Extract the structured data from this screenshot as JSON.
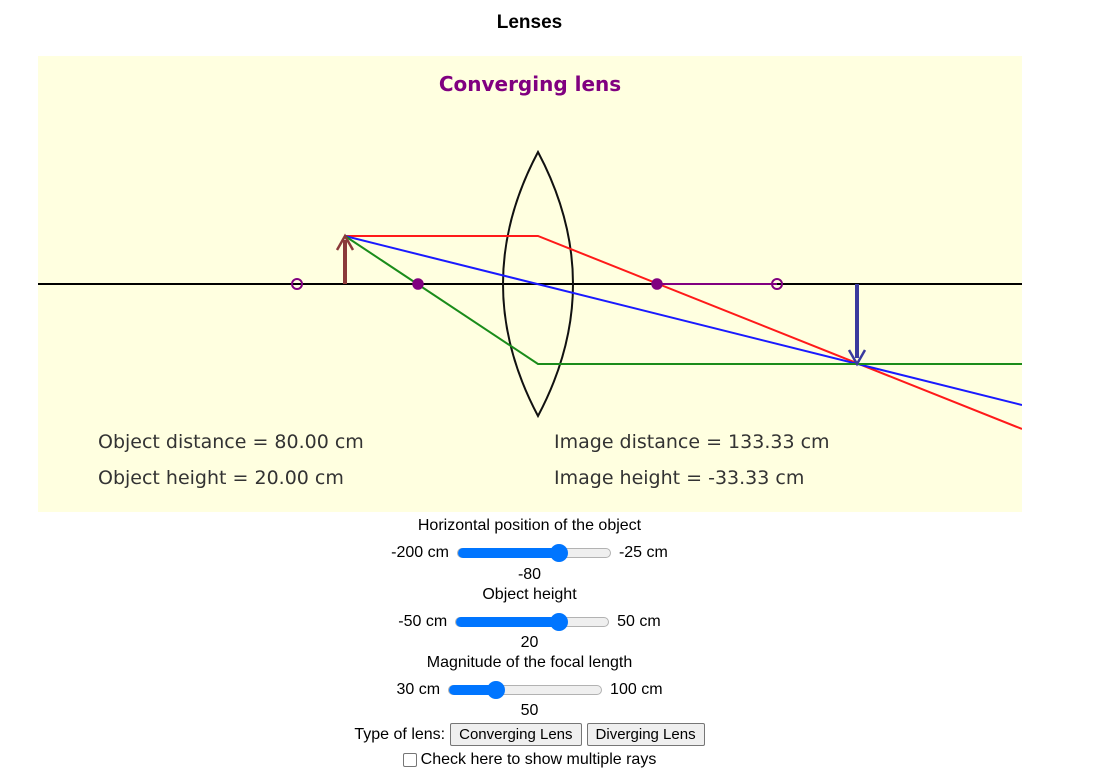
{
  "page": {
    "title": "Lenses"
  },
  "diagram": {
    "title": "Converging lens",
    "object_distance": "Object distance = 80.00 cm",
    "object_height": "Object height = 20.00 cm",
    "image_distance": "Image distance = 133.33 cm",
    "image_height": "Image height = -33.33 cm",
    "colors": {
      "background": "#ffffe0",
      "axis": "#000000",
      "lens": "#000000",
      "object_arrow": "#8b3a3a",
      "image_arrow": "#3a3a9e",
      "ray_parallel": "#ff0000",
      "ray_center": "#0000ff",
      "ray_focal": "#008000",
      "focal_marker": "#800080",
      "title": "#800080"
    }
  },
  "controls": {
    "object_position": {
      "label": "Horizontal position of the object",
      "min_label": "-200 cm",
      "max_label": "-25 cm",
      "min": -200,
      "max": -25,
      "value": -80,
      "value_text": "-80"
    },
    "object_height": {
      "label": "Object height",
      "min_label": "-50 cm",
      "max_label": "50 cm",
      "min": -50,
      "max": 50,
      "value": 20,
      "value_text": "20"
    },
    "focal_length": {
      "label": "Magnitude of the focal length",
      "min_label": "30 cm",
      "max_label": "100 cm",
      "min": 30,
      "max": 100,
      "value": 50,
      "value_text": "50"
    },
    "lens_type": {
      "label": "Type of lens:",
      "converging_label": "Converging Lens",
      "diverging_label": "Diverging Lens"
    },
    "multiple_rays": {
      "label": "Check here to show multiple rays",
      "checked": false
    }
  }
}
